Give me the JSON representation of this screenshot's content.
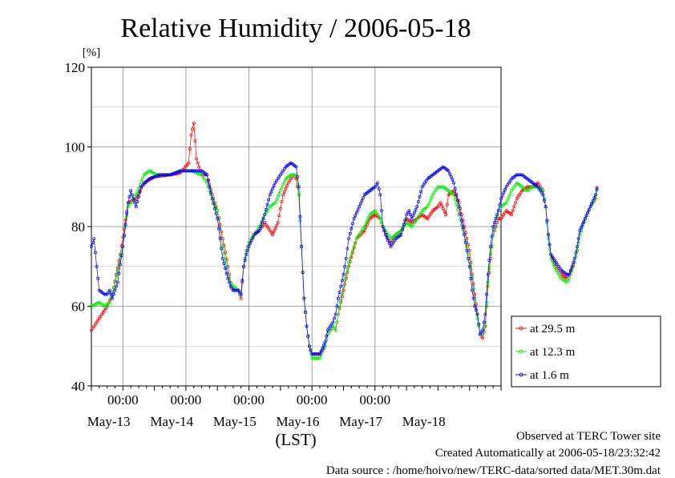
{
  "chart_data": {
    "type": "line",
    "title": "Relative Humidity / 2006-05-18",
    "ylabel": "[%]",
    "xlabel": "(LST)",
    "ylim": [
      40,
      120
    ],
    "y_ticks": [
      "40",
      "60",
      "80",
      "100",
      "120"
    ],
    "x_time_labels": [
      "00:00",
      "00:00",
      "00:00",
      "00:00",
      "00:00"
    ],
    "x_date_labels": [
      "May-13",
      "May-14",
      "May-15",
      "May-16",
      "May-17",
      "May-18"
    ],
    "x_axis_start": "2006-05-12 12:00",
    "x_axis_end": "2006-05-18 24:00",
    "grid": true,
    "legend_position": "right",
    "series": [
      {
        "name": "at 29.5 m",
        "color": "#ff0000",
        "keyframes": [
          [
            0,
            54
          ],
          [
            4,
            58
          ],
          [
            6,
            60
          ],
          [
            8,
            63
          ],
          [
            11,
            73
          ],
          [
            14,
            86
          ],
          [
            17,
            87
          ],
          [
            20,
            91
          ],
          [
            24,
            92.5
          ],
          [
            30,
            93
          ],
          [
            34,
            93.5
          ],
          [
            37,
            96
          ],
          [
            38,
            103
          ],
          [
            39,
            106
          ],
          [
            40,
            97
          ],
          [
            41,
            95
          ],
          [
            42,
            93
          ],
          [
            44,
            93
          ],
          [
            46,
            88
          ],
          [
            48,
            84
          ],
          [
            50,
            77
          ],
          [
            52,
            70
          ],
          [
            53,
            66
          ],
          [
            54,
            64
          ],
          [
            56,
            64
          ],
          [
            57,
            62
          ],
          [
            58,
            70
          ],
          [
            59,
            74
          ],
          [
            60,
            76
          ],
          [
            62,
            78
          ],
          [
            64,
            79
          ],
          [
            66,
            81
          ],
          [
            67,
            80
          ],
          [
            69,
            78
          ],
          [
            71,
            81
          ],
          [
            73,
            88
          ],
          [
            75,
            91
          ],
          [
            77,
            93
          ],
          [
            78,
            92
          ],
          [
            79,
            88
          ],
          [
            80,
            75
          ],
          [
            81,
            62
          ],
          [
            82,
            55
          ],
          [
            83,
            50
          ],
          [
            84,
            48
          ],
          [
            87,
            48
          ],
          [
            89,
            50
          ],
          [
            90,
            53
          ],
          [
            92,
            55
          ],
          [
            93,
            54
          ],
          [
            94,
            58
          ],
          [
            96,
            64
          ],
          [
            98,
            70
          ],
          [
            101,
            77
          ],
          [
            104,
            79
          ],
          [
            106,
            82
          ],
          [
            108,
            83
          ],
          [
            110,
            82
          ],
          [
            111,
            80
          ],
          [
            113,
            77
          ],
          [
            114,
            76
          ],
          [
            116,
            78
          ],
          [
            118,
            79
          ],
          [
            120,
            82
          ],
          [
            122,
            81
          ],
          [
            124,
            82
          ],
          [
            126,
            83
          ],
          [
            128,
            82
          ],
          [
            130,
            84
          ],
          [
            132,
            85
          ],
          [
            133,
            86
          ],
          [
            135,
            83
          ],
          [
            136,
            88
          ],
          [
            138,
            89
          ],
          [
            140,
            86
          ],
          [
            142,
            80
          ],
          [
            144,
            74
          ],
          [
            145,
            68
          ],
          [
            146,
            63
          ],
          [
            147,
            58
          ],
          [
            148,
            53
          ],
          [
            149,
            52
          ],
          [
            150,
            55
          ],
          [
            151,
            65
          ],
          [
            152,
            72
          ],
          [
            153,
            78
          ],
          [
            155,
            82
          ],
          [
            156,
            82
          ],
          [
            158,
            84
          ],
          [
            160,
            83
          ],
          [
            162,
            87
          ],
          [
            164,
            89
          ],
          [
            166,
            90
          ],
          [
            168,
            90
          ],
          [
            170,
            91
          ],
          [
            172,
            89
          ],
          [
            173,
            85
          ],
          [
            174,
            78
          ],
          [
            175,
            73
          ],
          [
            177,
            70
          ],
          [
            179,
            68
          ],
          [
            181,
            67
          ],
          [
            182,
            68
          ],
          [
            184,
            71
          ],
          [
            185,
            74
          ],
          [
            186,
            78
          ],
          [
            188,
            82
          ],
          [
            190,
            85
          ],
          [
            192,
            87
          ],
          [
            192.7,
            91
          ]
        ]
      },
      {
        "name": "at 12.3 m",
        "color": "#00ee00",
        "keyframes": [
          [
            0,
            60
          ],
          [
            3,
            61
          ],
          [
            5,
            60
          ],
          [
            7,
            61
          ],
          [
            9,
            66
          ],
          [
            12,
            75
          ],
          [
            14,
            85
          ],
          [
            17,
            88
          ],
          [
            20,
            93
          ],
          [
            22,
            94
          ],
          [
            25,
            93
          ],
          [
            30,
            93
          ],
          [
            34,
            94
          ],
          [
            38,
            94
          ],
          [
            42,
            93
          ],
          [
            44,
            91
          ],
          [
            46,
            87
          ],
          [
            48,
            84
          ],
          [
            50,
            75
          ],
          [
            52,
            68
          ],
          [
            53,
            66
          ],
          [
            54,
            65
          ],
          [
            56,
            64
          ],
          [
            57,
            63
          ],
          [
            58,
            70
          ],
          [
            59,
            74
          ],
          [
            60,
            76
          ],
          [
            62,
            78
          ],
          [
            64,
            80
          ],
          [
            66,
            83
          ],
          [
            68,
            85
          ],
          [
            70,
            86
          ],
          [
            72,
            89
          ],
          [
            74,
            92
          ],
          [
            76,
            93
          ],
          [
            78,
            93
          ],
          [
            79,
            88
          ],
          [
            80,
            75
          ],
          [
            81,
            62
          ],
          [
            82,
            55
          ],
          [
            83,
            50
          ],
          [
            84,
            47
          ],
          [
            87,
            47
          ],
          [
            89,
            50
          ],
          [
            90,
            53
          ],
          [
            92,
            55
          ],
          [
            93,
            54
          ],
          [
            94,
            58
          ],
          [
            96,
            65
          ],
          [
            98,
            71
          ],
          [
            101,
            77
          ],
          [
            104,
            80
          ],
          [
            106,
            83
          ],
          [
            108,
            84
          ],
          [
            110,
            82
          ],
          [
            111,
            80
          ],
          [
            113,
            78
          ],
          [
            114,
            77
          ],
          [
            116,
            78
          ],
          [
            118,
            79
          ],
          [
            120,
            81
          ],
          [
            122,
            80
          ],
          [
            124,
            82
          ],
          [
            126,
            84
          ],
          [
            128,
            85
          ],
          [
            130,
            88
          ],
          [
            132,
            90
          ],
          [
            134,
            90
          ],
          [
            136,
            89
          ],
          [
            138,
            88
          ],
          [
            140,
            83
          ],
          [
            142,
            78
          ],
          [
            144,
            72
          ],
          [
            145,
            67
          ],
          [
            146,
            62
          ],
          [
            147,
            57
          ],
          [
            148,
            53
          ],
          [
            149,
            53
          ],
          [
            150,
            56
          ],
          [
            151,
            66
          ],
          [
            152,
            73
          ],
          [
            153,
            78
          ],
          [
            155,
            84
          ],
          [
            156,
            85
          ],
          [
            158,
            86
          ],
          [
            160,
            89
          ],
          [
            162,
            91
          ],
          [
            164,
            90
          ],
          [
            166,
            89
          ],
          [
            168,
            90
          ],
          [
            170,
            90
          ],
          [
            172,
            89
          ],
          [
            173,
            85
          ],
          [
            174,
            77
          ],
          [
            175,
            72
          ],
          [
            177,
            69
          ],
          [
            179,
            67
          ],
          [
            181,
            66
          ],
          [
            182,
            67
          ],
          [
            184,
            71
          ],
          [
            185,
            74
          ],
          [
            186,
            78
          ],
          [
            188,
            82
          ],
          [
            190,
            85
          ],
          [
            192,
            87
          ],
          [
            192.7,
            90
          ]
        ]
      },
      {
        "name": "at 1.6 m",
        "color": "#0000ff",
        "keyframes": [
          [
            0,
            75
          ],
          [
            1,
            77
          ],
          [
            2,
            70
          ],
          [
            3,
            64
          ],
          [
            5,
            63
          ],
          [
            6,
            63
          ],
          [
            7,
            64
          ],
          [
            8,
            62
          ],
          [
            10,
            66
          ],
          [
            12,
            75
          ],
          [
            14,
            86
          ],
          [
            15,
            89
          ],
          [
            17,
            85
          ],
          [
            19,
            90
          ],
          [
            22,
            92
          ],
          [
            26,
            93
          ],
          [
            30,
            93
          ],
          [
            34,
            94
          ],
          [
            38,
            94
          ],
          [
            42,
            94
          ],
          [
            44,
            93
          ],
          [
            46,
            87
          ],
          [
            48,
            82
          ],
          [
            50,
            72
          ],
          [
            52,
            67
          ],
          [
            53,
            65
          ],
          [
            54,
            64
          ],
          [
            56,
            64
          ],
          [
            57,
            63
          ],
          [
            58,
            70
          ],
          [
            59,
            73
          ],
          [
            60,
            75
          ],
          [
            62,
            78
          ],
          [
            64,
            79
          ],
          [
            66,
            83
          ],
          [
            68,
            88
          ],
          [
            70,
            91
          ],
          [
            72,
            93
          ],
          [
            74,
            95
          ],
          [
            76,
            96
          ],
          [
            78,
            95
          ],
          [
            79,
            90
          ],
          [
            80,
            75
          ],
          [
            81,
            62
          ],
          [
            82,
            55
          ],
          [
            83,
            50
          ],
          [
            84,
            48
          ],
          [
            87,
            48
          ],
          [
            89,
            51
          ],
          [
            90,
            54
          ],
          [
            92,
            56
          ],
          [
            93,
            58
          ],
          [
            94,
            62
          ],
          [
            96,
            68
          ],
          [
            97,
            72
          ],
          [
            98,
            77
          ],
          [
            100,
            82
          ],
          [
            102,
            85
          ],
          [
            104,
            88
          ],
          [
            106,
            89
          ],
          [
            108,
            90
          ],
          [
            109,
            91
          ],
          [
            110,
            88
          ],
          [
            111,
            80
          ],
          [
            112,
            78
          ],
          [
            114,
            75
          ],
          [
            116,
            77
          ],
          [
            118,
            78
          ],
          [
            120,
            83
          ],
          [
            121,
            84
          ],
          [
            122,
            82
          ],
          [
            124,
            85
          ],
          [
            126,
            90
          ],
          [
            128,
            92
          ],
          [
            130,
            93
          ],
          [
            132,
            94
          ],
          [
            134,
            95
          ],
          [
            136,
            94
          ],
          [
            138,
            91
          ],
          [
            140,
            85
          ],
          [
            142,
            78
          ],
          [
            144,
            70
          ],
          [
            145,
            64
          ],
          [
            146,
            60
          ],
          [
            147,
            58
          ],
          [
            148,
            53
          ],
          [
            149,
            54
          ],
          [
            150,
            58
          ],
          [
            151,
            68
          ],
          [
            152,
            75
          ],
          [
            153,
            80
          ],
          [
            155,
            84
          ],
          [
            156,
            87
          ],
          [
            158,
            90
          ],
          [
            160,
            92
          ],
          [
            162,
            93
          ],
          [
            164,
            93
          ],
          [
            166,
            92
          ],
          [
            168,
            91
          ],
          [
            170,
            90
          ],
          [
            172,
            88
          ],
          [
            173,
            85
          ],
          [
            174,
            78
          ],
          [
            175,
            73
          ],
          [
            177,
            71
          ],
          [
            179,
            69
          ],
          [
            181,
            68
          ],
          [
            182,
            68
          ],
          [
            184,
            72
          ],
          [
            185,
            75
          ],
          [
            186,
            79
          ],
          [
            188,
            82
          ],
          [
            190,
            85
          ],
          [
            192,
            88
          ],
          [
            192.7,
            90
          ]
        ]
      }
    ]
  },
  "footer": {
    "line1": "Observed at TERC Tower site",
    "line2": "Created Automatically at 2006-05-18/23:32:42",
    "line3": "Data source : /home/hoivo/new/TERC-data/sorted  data/MET.30m.dat"
  }
}
